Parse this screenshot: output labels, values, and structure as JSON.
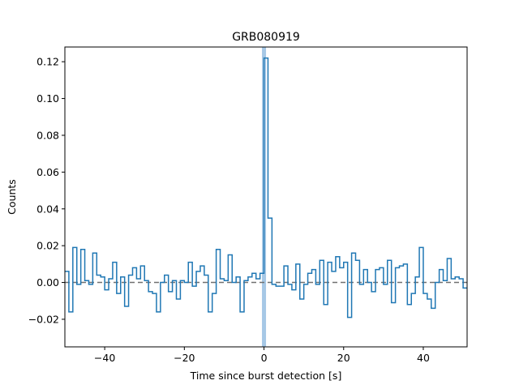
{
  "chart_data": {
    "type": "line",
    "style": "step",
    "title": "GRB080919",
    "xlabel": "Time since burst detection [s]",
    "ylabel": "Counts",
    "xlim": [
      -50,
      51
    ],
    "ylim": [
      -0.035,
      0.128
    ],
    "xticks": [
      -40,
      -20,
      0,
      20,
      40
    ],
    "xtick_labels": [
      "−40",
      "−20",
      "0",
      "20",
      "40"
    ],
    "yticks": [
      -0.02,
      0.0,
      0.02,
      0.04,
      0.06,
      0.08,
      0.1,
      0.12
    ],
    "ytick_labels": [
      "−0.02",
      "0.00",
      "0.02",
      "0.04",
      "0.06",
      "0.08",
      "0.10",
      "0.12"
    ],
    "grid": false,
    "baseline": 0.0,
    "burst_time": 0,
    "colors": {
      "series": "#1f77b4",
      "highlight": "#a6c8e6",
      "baseline": "#707070"
    },
    "bin_edges_start": -50,
    "bin_width": 1,
    "series": [
      {
        "values": [
          0.006,
          -0.016,
          0.019,
          -0.001,
          0.018,
          0.001,
          -0.001,
          0.016,
          0.004,
          0.003,
          -0.004,
          0.002,
          0.011,
          -0.006,
          0.003,
          -0.013,
          0.004,
          0.008,
          0.002,
          0.009,
          0.001,
          -0.005,
          -0.006,
          -0.016,
          0.0,
          0.004,
          -0.005,
          0.001,
          -0.009,
          0.001,
          0.0,
          0.011,
          -0.002,
          0.006,
          0.009,
          0.004,
          -0.016,
          -0.006,
          0.018,
          0.002,
          0.001,
          0.015,
          0.0,
          0.003,
          -0.016,
          0.001,
          0.003,
          0.005,
          0.002,
          0.005,
          0.122,
          0.035,
          -0.001,
          -0.002,
          -0.002,
          0.009,
          -0.001,
          -0.004,
          0.01,
          -0.009,
          -0.001,
          0.005,
          0.007,
          -0.001,
          0.012,
          -0.012,
          0.011,
          0.006,
          0.014,
          0.008,
          0.011,
          -0.019,
          0.016,
          0.012,
          -0.001,
          0.007,
          0.0,
          -0.005,
          0.007,
          0.008,
          -0.001,
          0.012,
          -0.011,
          0.008,
          0.009,
          0.01,
          -0.012,
          -0.006,
          0.003,
          0.019,
          -0.006,
          -0.009,
          -0.014,
          0.0,
          0.007,
          0.001,
          0.013,
          0.002,
          0.003,
          0.002,
          -0.003
        ]
      }
    ]
  }
}
